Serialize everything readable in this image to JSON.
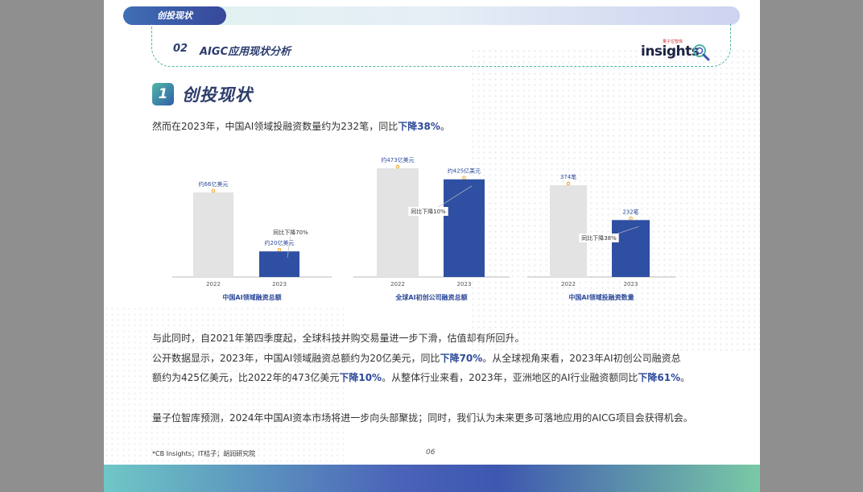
{
  "header": {
    "tag": "创投现状",
    "section_number": "02",
    "section_title": "AIGC应用现状分析",
    "logo_text": "insights",
    "logo_subtext": "量子位智库"
  },
  "heading": {
    "number": "1",
    "title": "创投现状"
  },
  "intro": {
    "text": "然而在2023年，中国AI领域投融资数量约为232笔，同比",
    "highlight": "下降38%",
    "end": "。"
  },
  "body": {
    "line1": "与此同时，自2021年第四季度起，全球科技并购交易量进一步下滑，估值却有所回升。",
    "line2_a": "公开数据显示，2023年，中国AI领域融资总额约为20亿美元，同比",
    "line2_b": "下降70%",
    "line2_c": "。从全球视角来看，2023年AI初创公司融资总",
    "line3_a": "额约为425亿美元，比2022年的473亿美元",
    "line3_b": "下降10%",
    "line3_c": "。从整体行业来看，2023年，亚洲地区的AI行业融资额同比",
    "line3_d": "下降61%",
    "line3_e": "。",
    "line4": "量子位智库预测，2024年中国AI资本市场将进一步向头部聚拢；同时，我们认为未来更多可落地应用的AICG项目会获得机会。"
  },
  "footnote": "*CB Insights；IT桔子；胡润研究院",
  "page_number": "06",
  "colors": {
    "bar_2022": "#e3e3e3",
    "bar_2023": "#2f4fa3",
    "accent": "#2d4a9a",
    "dot": "#f0a020"
  },
  "chart_data": [
    {
      "type": "bar",
      "categories": [
        "2022",
        "2023"
      ],
      "values": [
        66,
        20
      ],
      "data_labels": [
        "约66亿美元",
        "约20亿美元"
      ],
      "annotation": "同比下降70%",
      "title": "中国AI领域融资总额",
      "ylim": [
        0,
        100
      ]
    },
    {
      "type": "bar",
      "categories": [
        "2022",
        "2023"
      ],
      "values": [
        473,
        425
      ],
      "data_labels": [
        "约473亿美元",
        "约425亿美元"
      ],
      "annotation": "同比下降10%",
      "title": "全球AI初创公司融资总额",
      "ylim": [
        0,
        520
      ]
    },
    {
      "type": "bar",
      "categories": [
        "2022",
        "2023"
      ],
      "values": [
        374,
        232
      ],
      "data_labels": [
        "374笔",
        "232笔"
      ],
      "annotation": "同比下降38%",
      "title": "中国AI领域投融资数量",
      "ylim": [
        0,
        440
      ]
    }
  ]
}
